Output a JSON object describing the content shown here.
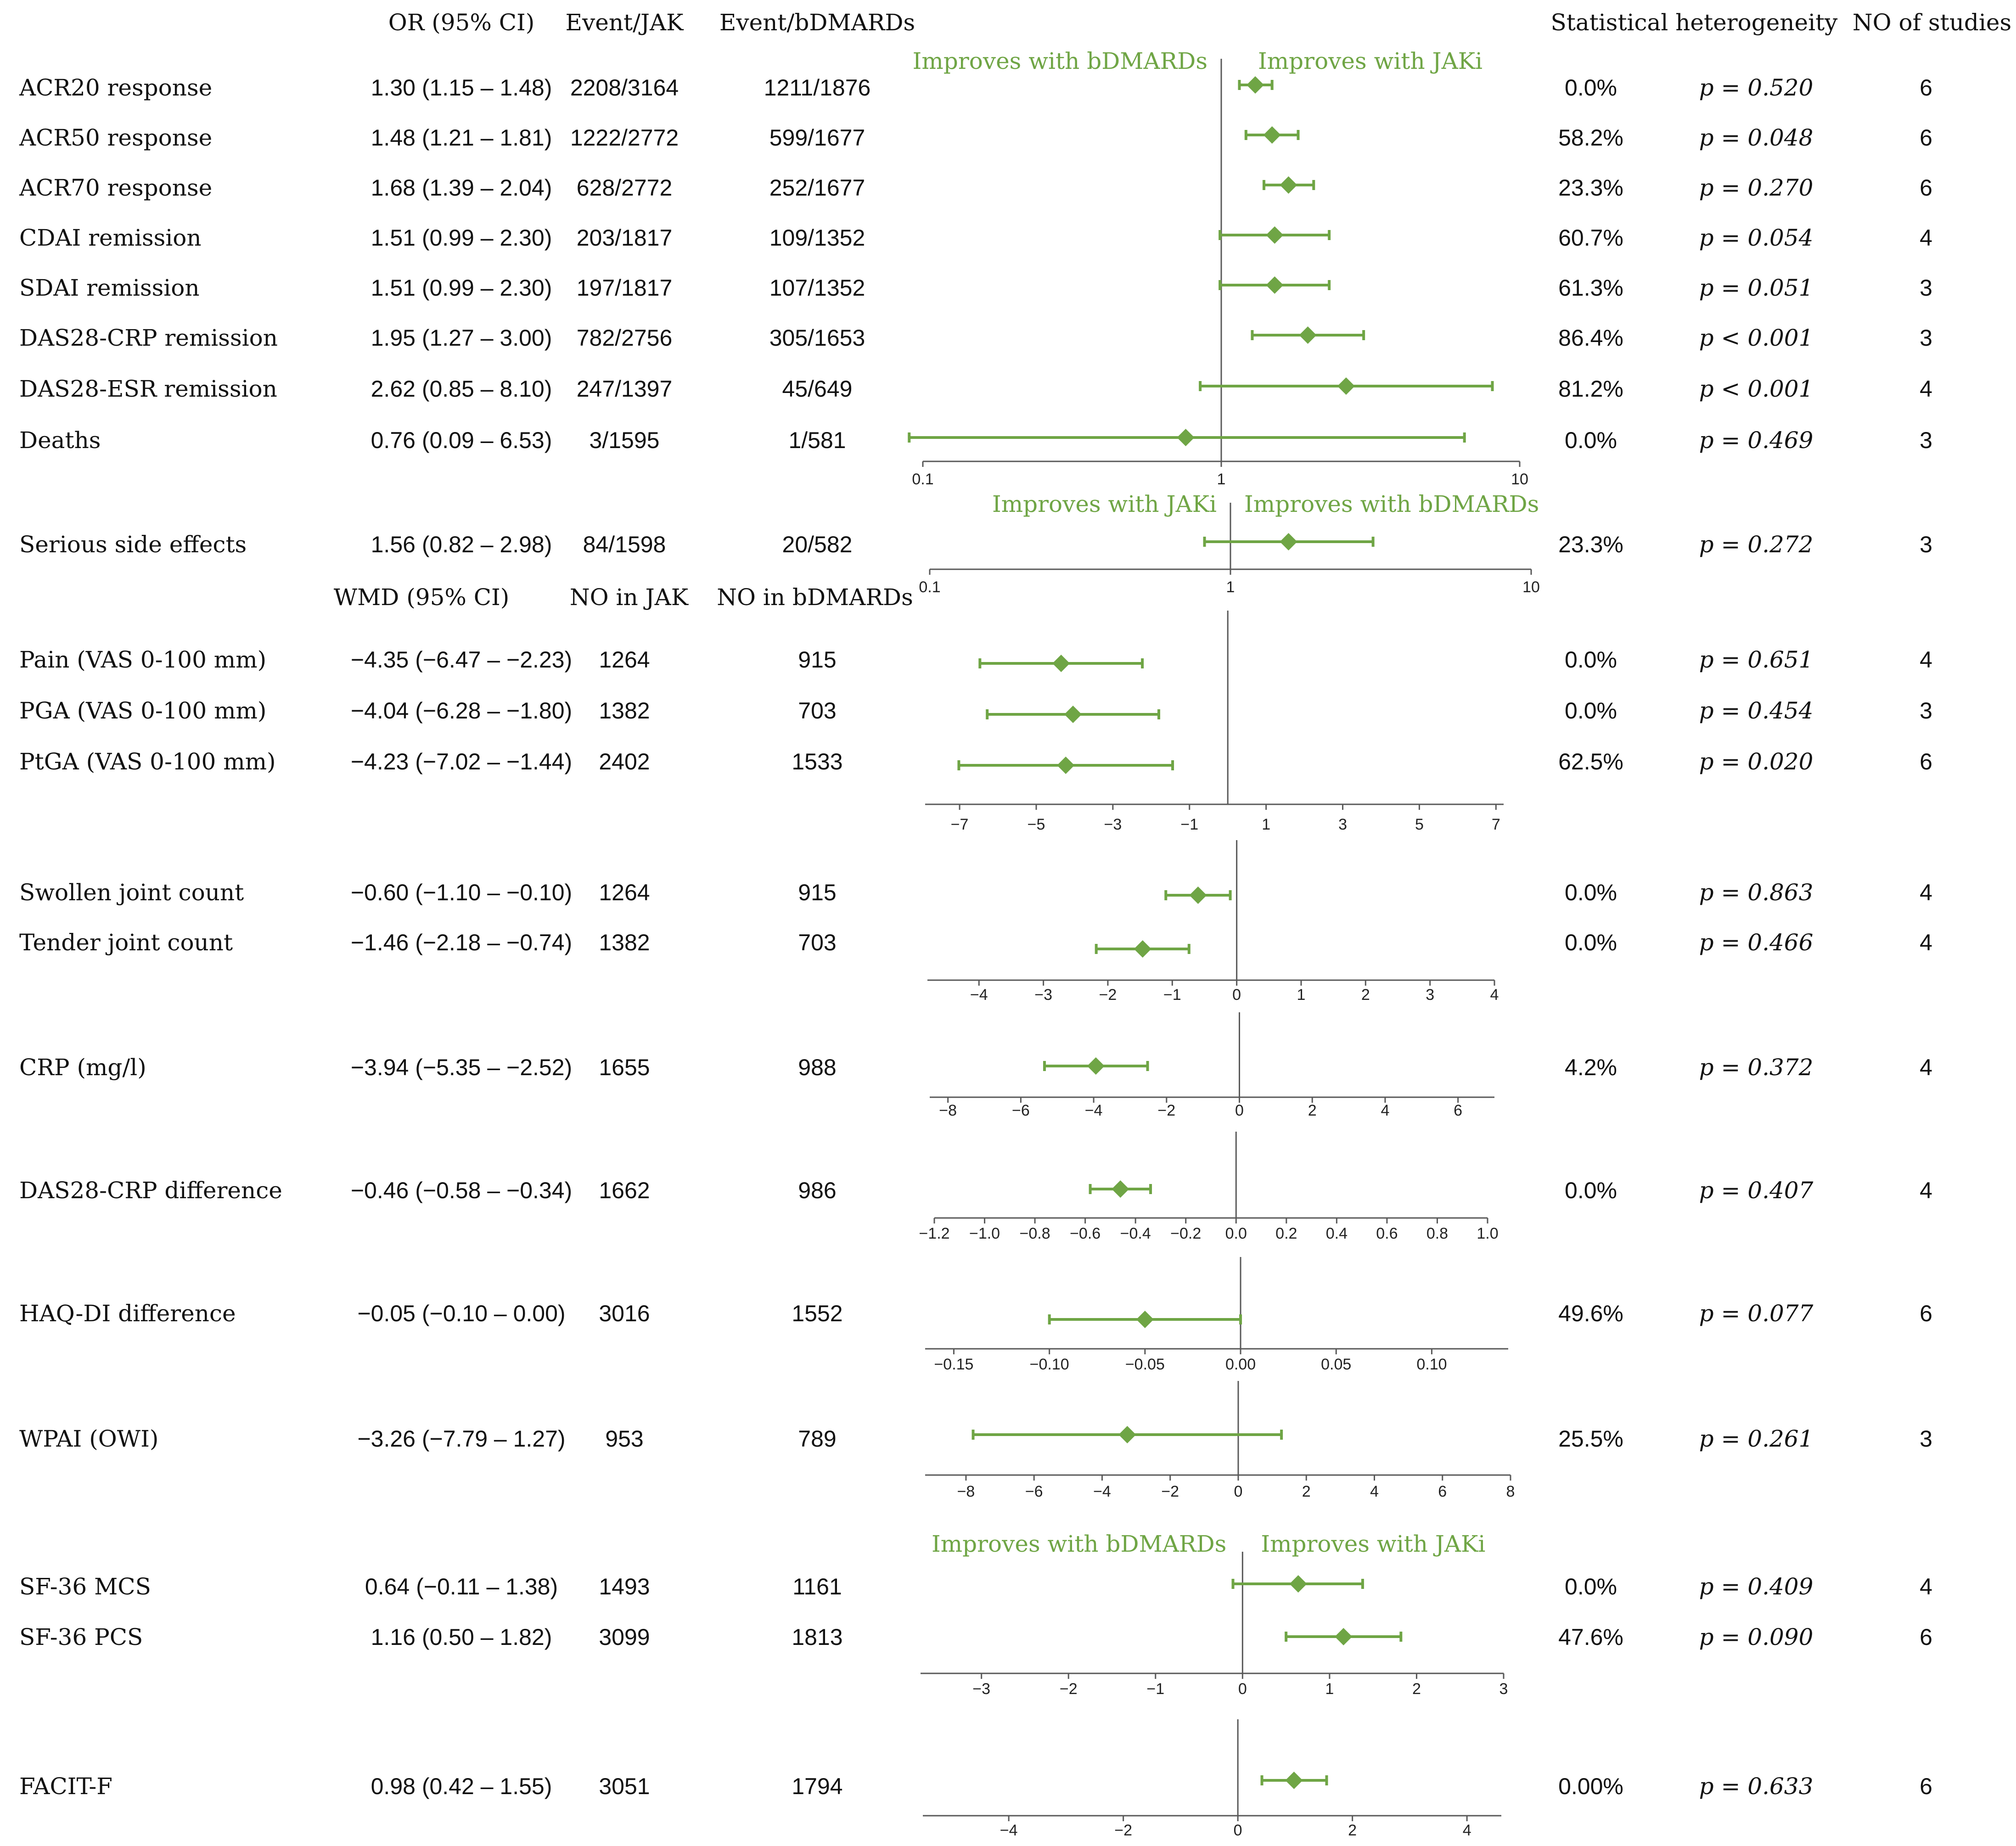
{
  "header": {
    "or_ci": "OR (95% CI)",
    "event_jak": "Event/JAK",
    "event_bdmards": "Event/bDMARDs",
    "heterogeneity": "Statistical heterogeneity",
    "n_studies": "NO of studies",
    "wmd_ci": "WMD (95% CI)",
    "no_jak": "NO in JAK",
    "no_bdmards": "NO in bDMARDs"
  },
  "colors": {
    "accent": "#6FA545",
    "axis": "#595959",
    "text": "#111111"
  },
  "chart_data": [
    {
      "type": "forest",
      "id": "or_efficacy",
      "scale": "log",
      "xlim": [
        0.1,
        10
      ],
      "ticks": [
        0.1,
        1,
        10
      ],
      "tick_labels": [
        "0.1",
        "1",
        "10"
      ],
      "reference": 1,
      "direction_labels": [
        "Improves with bDMARDs",
        "Improves with JAKi"
      ],
      "rows": [
        {
          "label": "ACR20 response",
          "ci_text": "1.30 (1.15 – 1.48)",
          "n_jak": "2208/3164",
          "n_bdmards": "1211/1876",
          "estimate": 1.3,
          "lower": 1.15,
          "upper": 1.48,
          "i2": "0.0%",
          "p": "p = 0.520",
          "studies": "6"
        },
        {
          "label": "ACR50 response",
          "ci_text": "1.48 (1.21 – 1.81)",
          "n_jak": "1222/2772",
          "n_bdmards": "599/1677",
          "estimate": 1.48,
          "lower": 1.21,
          "upper": 1.81,
          "i2": "58.2%",
          "p": "p = 0.048",
          "studies": "6"
        },
        {
          "label": "ACR70 response",
          "ci_text": "1.68 (1.39 – 2.04)",
          "n_jak": "628/2772",
          "n_bdmards": "252/1677",
          "estimate": 1.68,
          "lower": 1.39,
          "upper": 2.04,
          "i2": "23.3%",
          "p": "p = 0.270",
          "studies": "6"
        },
        {
          "label": "CDAI remission",
          "ci_text": "1.51 (0.99 – 2.30)",
          "n_jak": "203/1817",
          "n_bdmards": "109/1352",
          "estimate": 1.51,
          "lower": 0.99,
          "upper": 2.3,
          "i2": "60.7%",
          "p": "p = 0.054",
          "studies": "4"
        },
        {
          "label": "SDAI remission",
          "ci_text": "1.51 (0.99 – 2.30)",
          "n_jak": "197/1817",
          "n_bdmards": "107/1352",
          "estimate": 1.51,
          "lower": 0.99,
          "upper": 2.3,
          "i2": "61.3%",
          "p": "p = 0.051",
          "studies": "3"
        },
        {
          "label": "DAS28-CRP remission",
          "ci_text": "1.95 (1.27 – 3.00)",
          "n_jak": "782/2756",
          "n_bdmards": "305/1653",
          "estimate": 1.95,
          "lower": 1.27,
          "upper": 3.0,
          "i2": "86.4%",
          "p": "p < 0.001",
          "studies": "3"
        },
        {
          "label": "DAS28-ESR remission",
          "ci_text": "2.62 (0.85 – 8.10)",
          "n_jak": "247/1397",
          "n_bdmards": "45/649",
          "estimate": 2.62,
          "lower": 0.85,
          "upper": 8.1,
          "i2": "81.2%",
          "p": "p < 0.001",
          "studies": "4"
        },
        {
          "label": "Deaths",
          "ci_text": "0.76 (0.09 – 6.53)",
          "n_jak": "3/1595",
          "n_bdmards": "1/581",
          "estimate": 0.76,
          "lower": 0.09,
          "upper": 6.53,
          "i2": "0.0%",
          "p": "p = 0.469",
          "studies": "3"
        }
      ]
    },
    {
      "type": "forest",
      "id": "or_safety",
      "scale": "log",
      "xlim": [
        0.1,
        10
      ],
      "ticks": [
        0.1,
        1,
        10
      ],
      "tick_labels": [
        "0.1",
        "1",
        "10"
      ],
      "reference": 1,
      "direction_labels": [
        "Improves with JAKi",
        "Improves with bDMARDs"
      ],
      "rows": [
        {
          "label": "Serious side effects",
          "ci_text": "1.56 (0.82 – 2.98)",
          "n_jak": "84/1598",
          "n_bdmards": "20/582",
          "estimate": 1.56,
          "lower": 0.82,
          "upper": 2.98,
          "i2": "23.3%",
          "p": "p = 0.272",
          "studies": "3"
        }
      ]
    },
    {
      "type": "forest",
      "id": "wmd_vas",
      "scale": "linear",
      "xlim": [
        -7.9,
        7.2
      ],
      "ticks": [
        -7,
        -5,
        -3,
        -1,
        1,
        3,
        5,
        7
      ],
      "tick_labels": [
        "−7",
        "−5",
        "−3",
        "−1",
        "1",
        "3",
        "5",
        "7"
      ],
      "reference": 0,
      "rows": [
        {
          "label": "Pain (VAS 0-100 mm)",
          "ci_text": "−4.35 (−6.47 – −2.23)",
          "n_jak": "1264",
          "n_bdmards": "915",
          "estimate": -4.35,
          "lower": -6.47,
          "upper": -2.23,
          "i2": "0.0%",
          "p": "p = 0.651",
          "studies": "4"
        },
        {
          "label": "PGA (VAS 0-100 mm)",
          "ci_text": "−4.04 (−6.28 – −1.80)",
          "n_jak": "1382",
          "n_bdmards": "703",
          "estimate": -4.04,
          "lower": -6.28,
          "upper": -1.8,
          "i2": "0.0%",
          "p": "p = 0.454",
          "studies": "3"
        },
        {
          "label": "PtGA (VAS 0-100 mm)",
          "ci_text": "−4.23 (−7.02 – −1.44)",
          "n_jak": "2402",
          "n_bdmards": "1533",
          "estimate": -4.23,
          "lower": -7.02,
          "upper": -1.44,
          "i2": "62.5%",
          "p": "p = 0.020",
          "studies": "6"
        }
      ]
    },
    {
      "type": "forest",
      "id": "wmd_joints",
      "scale": "linear",
      "xlim": [
        -4.8,
        4.0
      ],
      "ticks": [
        -4,
        -3,
        -2,
        -1,
        0,
        1,
        2,
        3,
        4
      ],
      "tick_labels": [
        "−4",
        "−3",
        "−2",
        "−1",
        "0",
        "1",
        "2",
        "3",
        "4"
      ],
      "reference": 0,
      "rows": [
        {
          "label": "Swollen joint count",
          "ci_text": "−0.60 (−1.10 – −0.10)",
          "n_jak": "1264",
          "n_bdmards": "915",
          "estimate": -0.6,
          "lower": -1.1,
          "upper": -0.1,
          "i2": "0.0%",
          "p": "p = 0.863",
          "studies": "4"
        },
        {
          "label": "Tender joint count",
          "ci_text": "−1.46 (−2.18 – −0.74)",
          "n_jak": "1382",
          "n_bdmards": "703",
          "estimate": -1.46,
          "lower": -2.18,
          "upper": -0.74,
          "i2": "0.0%",
          "p": "p = 0.466",
          "studies": "4"
        }
      ]
    },
    {
      "type": "forest",
      "id": "wmd_crp",
      "scale": "linear",
      "xlim": [
        -8.5,
        7.0
      ],
      "ticks": [
        -8,
        -6,
        -4,
        -2,
        0,
        2,
        4,
        6
      ],
      "tick_labels": [
        "−8",
        "−6",
        "−4",
        "−2",
        "0",
        "2",
        "4",
        "6"
      ],
      "reference": 0,
      "rows": [
        {
          "label": "CRP (mg/l)",
          "ci_text": "−3.94 (−5.35 – −2.52)",
          "n_jak": "1655",
          "n_bdmards": "988",
          "estimate": -3.94,
          "lower": -5.35,
          "upper": -2.52,
          "i2": "4.2%",
          "p": "p = 0.372",
          "studies": "4"
        }
      ]
    },
    {
      "type": "forest",
      "id": "wmd_das28",
      "scale": "linear",
      "xlim": [
        -1.2,
        1.0
      ],
      "ticks": [
        -1.2,
        -1.0,
        -0.8,
        -0.6,
        -0.4,
        -0.2,
        0.0,
        0.2,
        0.4,
        0.6,
        0.8,
        1.0
      ],
      "tick_labels": [
        "−1.2",
        "−1.0",
        "−0.8",
        "−0.6",
        "−0.4",
        "−0.2",
        "0.0",
        "0.2",
        "0.4",
        "0.6",
        "0.8",
        "1.0"
      ],
      "reference": 0,
      "rows": [
        {
          "label": "DAS28-CRP difference",
          "ci_text": "−0.46 (−0.58 – −0.34)",
          "n_jak": "1662",
          "n_bdmards": "986",
          "estimate": -0.46,
          "lower": -0.58,
          "upper": -0.34,
          "i2": "0.0%",
          "p": "p = 0.407",
          "studies": "4"
        }
      ]
    },
    {
      "type": "forest",
      "id": "wmd_haq",
      "scale": "linear",
      "xlim": [
        -0.165,
        0.14
      ],
      "ticks": [
        -0.15,
        -0.1,
        -0.05,
        0.0,
        0.05,
        0.1
      ],
      "tick_labels": [
        "−0.15",
        "−0.10",
        "−0.05",
        "0.00",
        "0.05",
        "0.10"
      ],
      "reference": 0,
      "rows": [
        {
          "label": "HAQ-DI difference",
          "ci_text": "−0.05 (−0.10 – 0.00)",
          "n_jak": "3016",
          "n_bdmards": "1552",
          "estimate": -0.05,
          "lower": -0.1,
          "upper": 0.0,
          "i2": "49.6%",
          "p": "p = 0.077",
          "studies": "6"
        }
      ]
    },
    {
      "type": "forest",
      "id": "wmd_wpai",
      "scale": "linear",
      "xlim": [
        -9.2,
        8.0
      ],
      "ticks": [
        -8,
        -6,
        -4,
        -2,
        0,
        2,
        4,
        6,
        8
      ],
      "tick_labels": [
        "−8",
        "−6",
        "−4",
        "−2",
        "0",
        "2",
        "4",
        "6",
        "8"
      ],
      "reference": 0,
      "rows": [
        {
          "label": "WPAI (OWI)",
          "ci_text": "−3.26 (−7.79 – 1.27)",
          "n_jak": "953",
          "n_bdmards": "789",
          "estimate": -3.26,
          "lower": -7.79,
          "upper": 1.27,
          "i2": "25.5%",
          "p": "p = 0.261",
          "studies": "3"
        }
      ]
    },
    {
      "type": "forest",
      "id": "wmd_sf36",
      "scale": "linear",
      "xlim": [
        -3.7,
        3.0
      ],
      "ticks": [
        -3,
        -2,
        -1,
        0,
        1,
        2,
        3
      ],
      "tick_labels": [
        "−3",
        "−2",
        "−1",
        "0",
        "1",
        "2",
        "3"
      ],
      "reference": 0,
      "direction_labels": [
        "Improves with bDMARDs",
        "Improves with JAKi"
      ],
      "rows": [
        {
          "label": "SF-36 MCS",
          "ci_text": "0.64 (−0.11 – 1.38)",
          "n_jak": "1493",
          "n_bdmards": "1161",
          "estimate": 0.64,
          "lower": -0.11,
          "upper": 1.38,
          "i2": "0.0%",
          "p": "p = 0.409",
          "studies": "4"
        },
        {
          "label": "SF-36 PCS",
          "ci_text": "1.16 (0.50 – 1.82)",
          "n_jak": "3099",
          "n_bdmards": "1813",
          "estimate": 1.16,
          "lower": 0.5,
          "upper": 1.82,
          "i2": "47.6%",
          "p": "p = 0.090",
          "studies": "6"
        }
      ]
    },
    {
      "type": "forest",
      "id": "wmd_facit",
      "scale": "linear",
      "xlim": [
        -5.5,
        4.6
      ],
      "ticks": [
        -4,
        -2,
        0,
        2,
        4
      ],
      "tick_labels": [
        "−4",
        "−2",
        "0",
        "2",
        "4"
      ],
      "reference": 0,
      "rows": [
        {
          "label": "FACIT-F",
          "ci_text": "0.98 (0.42 – 1.55)",
          "n_jak": "3051",
          "n_bdmards": "1794",
          "estimate": 0.98,
          "lower": 0.42,
          "upper": 1.55,
          "i2": "0.00%",
          "p": "p = 0.633",
          "studies": "6"
        }
      ]
    }
  ]
}
